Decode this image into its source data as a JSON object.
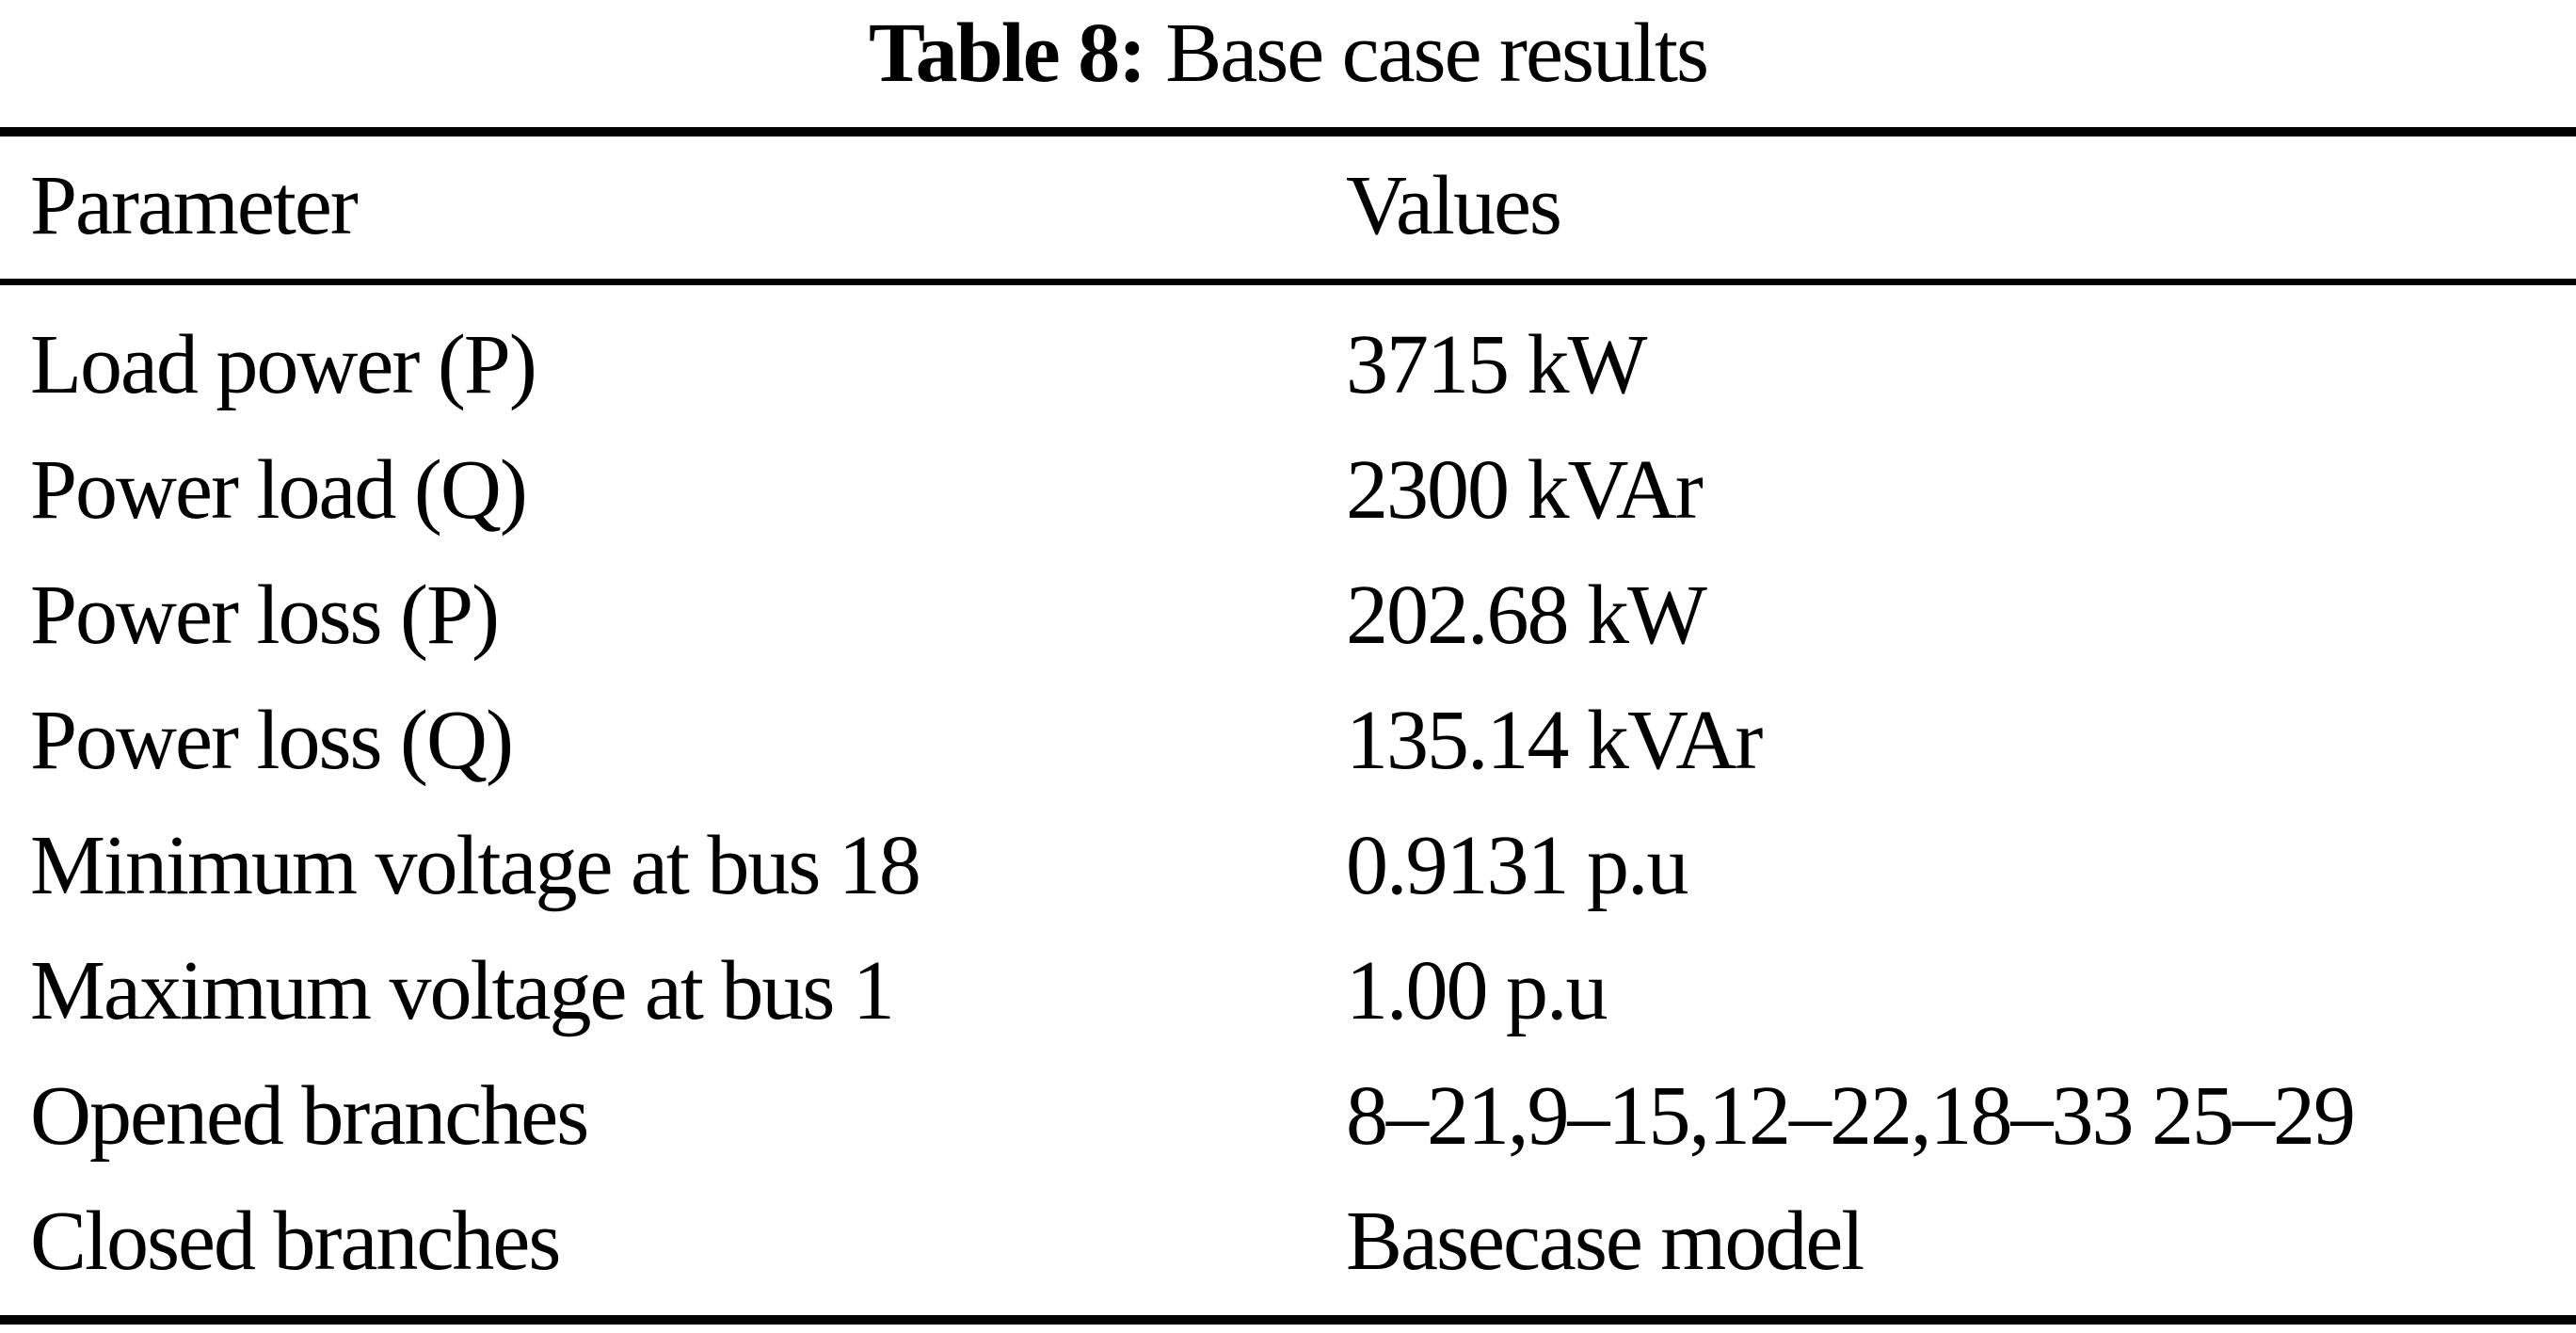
{
  "caption": {
    "label": "Table 8:",
    "text": "Base case results"
  },
  "table": {
    "headers": {
      "parameter": "Parameter",
      "values": "Values"
    },
    "rows": [
      {
        "parameter": "Load power (P)",
        "value": "3715 kW"
      },
      {
        "parameter": "Power load (Q)",
        "value": "2300 kVAr"
      },
      {
        "parameter": "Power loss (P)",
        "value": "202.68 kW"
      },
      {
        "parameter": "Power loss (Q)",
        "value": "135.14 kVAr"
      },
      {
        "parameter": "Minimum voltage at bus 18",
        "value": "0.9131 p.u"
      },
      {
        "parameter": "Maximum voltage at bus 1",
        "value": "1.00 p.u"
      },
      {
        "parameter": "Opened branches",
        "value": "8–21,9–15,12–22,18–33 25–29"
      },
      {
        "parameter": "Closed branches",
        "value": "Basecase model"
      }
    ]
  },
  "colors": {
    "background": "#ffffff",
    "text": "#000000",
    "rule": "#000000"
  }
}
